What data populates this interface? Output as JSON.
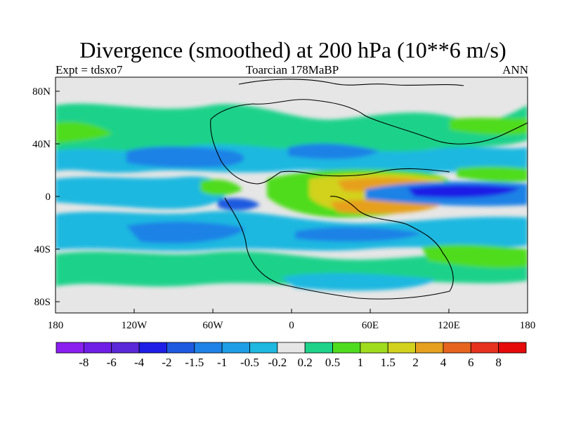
{
  "title": "Divergence (smoothed) at 200 hPa (10**6 m/s)",
  "subtitle_left": "Expt = tdsxo7",
  "subtitle_center": "Toarcian 178MaBP",
  "subtitle_right": "ANN",
  "lat_ticks": [
    "80N",
    "40N",
    "0",
    "40S",
    "80S"
  ],
  "lon_ticks": [
    "180",
    "120W",
    "60W",
    "0",
    "60E",
    "120E",
    "180"
  ],
  "colorbar": {
    "colors": [
      "#8a1ff0",
      "#6e1ee6",
      "#5a28d8",
      "#1e1ee6",
      "#1e5ae0",
      "#1e82e6",
      "#1e9ee6",
      "#1eb8e0",
      "#e6e6e6",
      "#1ed28a",
      "#50dc1e",
      "#a0dc1e",
      "#d2d21e",
      "#e6a01e",
      "#e6641e",
      "#e6321e",
      "#e60a0a"
    ],
    "labels": [
      "-8",
      "-6",
      "-4",
      "-2",
      "-1.5",
      "-1",
      "-0.5",
      "-0.2",
      "0.2",
      "0.5",
      "1",
      "1.5",
      "2",
      "4",
      "6",
      "8"
    ]
  },
  "palette": {
    "neutral": "#e6e6e6",
    "weak_pos": "#1ed28a",
    "pos": "#50dc1e",
    "pos2": "#a0dc1e",
    "pos3": "#d2d21e",
    "strong_pos": "#e6a01e",
    "weak_neg": "#1eb8e0",
    "neg": "#1e9ee6",
    "neg2": "#1e82e6",
    "strong_neg": "#1e5ae0",
    "very_neg": "#1e1ee6"
  }
}
